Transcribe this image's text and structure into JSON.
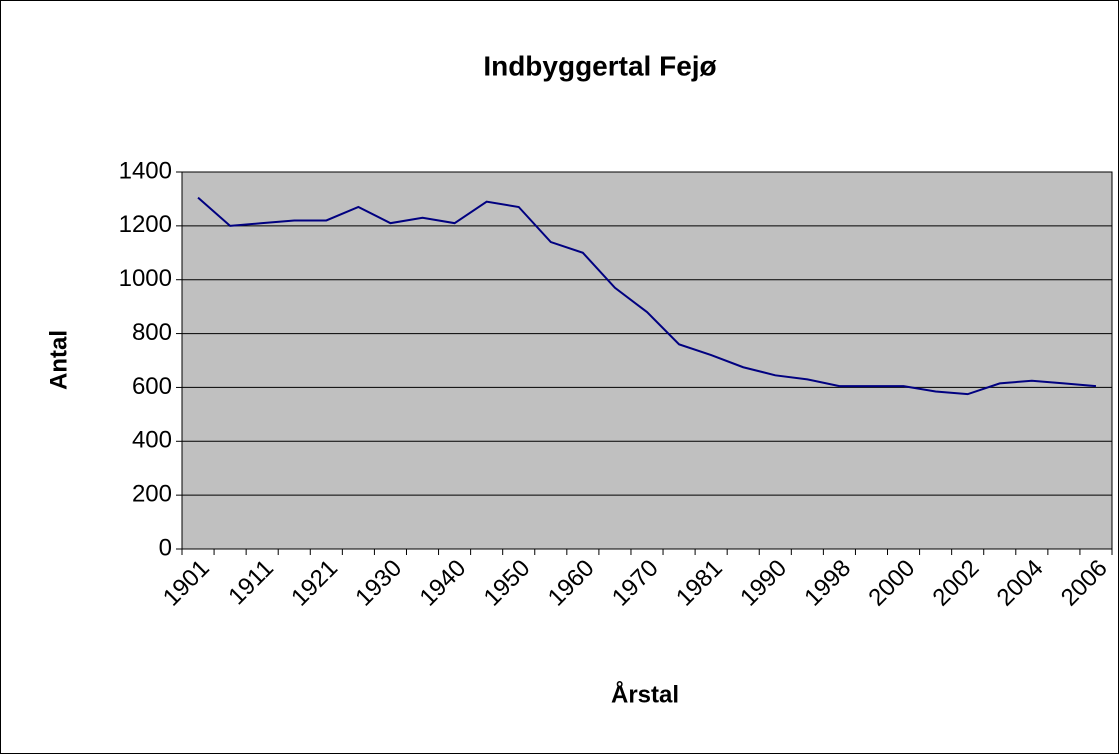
{
  "chart_data": {
    "type": "line",
    "title": "Indbyggertal Fejø",
    "x_label": "Årstal",
    "y_label": "Antal",
    "categories": [
      "1901",
      null,
      "1911",
      null,
      "1921",
      null,
      "1930",
      null,
      "1940",
      null,
      "1950",
      null,
      "1960",
      null,
      "1970",
      null,
      "1981",
      null,
      "1990",
      null,
      "1998",
      null,
      "2000",
      null,
      "2002",
      null,
      "2004",
      null,
      "2006"
    ],
    "series": [
      {
        "name": "Antal",
        "color": "#000080",
        "values": [
          1305,
          1200,
          1210,
          1220,
          1220,
          1270,
          1210,
          1230,
          1210,
          1290,
          1270,
          1140,
          1100,
          970,
          880,
          760,
          720,
          675,
          645,
          630,
          605,
          605,
          605,
          585,
          575,
          615,
          625,
          615,
          605
        ]
      }
    ],
    "ylim": [
      0,
      1400
    ],
    "yticks": [
      0,
      200,
      400,
      600,
      800,
      1000,
      1200,
      1400
    ],
    "grid": true,
    "plot_background": "#c0c0c0"
  }
}
